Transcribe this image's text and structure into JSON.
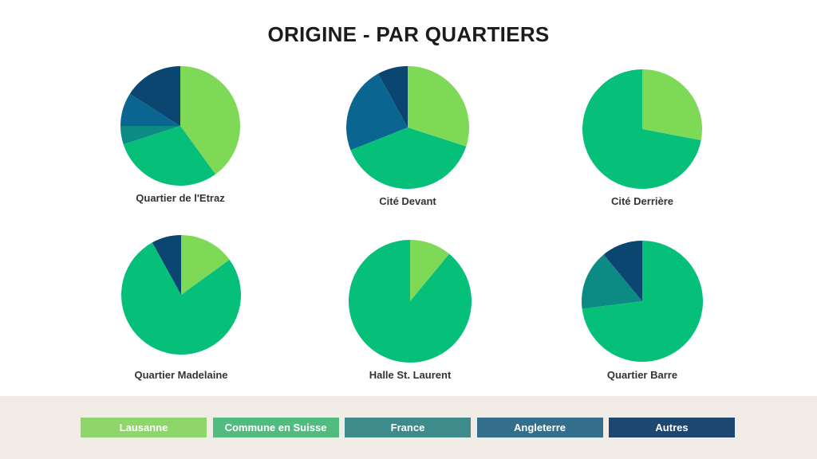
{
  "chart_data": {
    "type": "pie",
    "title": "ORIGINE - PAR QUARTIERS",
    "legend": {
      "placement": "bottom",
      "entries": [
        "Lausanne",
        "Commune en Suisse",
        "France",
        "Angleterre",
        "Autres"
      ]
    },
    "colors": {
      "slices": [
        "#7ed957",
        "#06c07a",
        "#0c8a84",
        "#0a6690",
        "#0a4670"
      ],
      "legend": [
        "#8ed56a",
        "#52bb80",
        "#3d8b8a",
        "#336e8a",
        "#1d4670"
      ]
    },
    "charts": [
      {
        "name": "Quartier de l'Etraz",
        "values": [
          40,
          30,
          5,
          9,
          16
        ]
      },
      {
        "name": "Cité Devant",
        "values": [
          30,
          39,
          0,
          23,
          8
        ]
      },
      {
        "name": "Cité Derrière",
        "values": [
          28,
          72,
          0,
          0,
          0
        ]
      },
      {
        "name": "Quartier Madelaine",
        "values": [
          15,
          77,
          0,
          0,
          8
        ]
      },
      {
        "name": "Halle St. Laurent",
        "values": [
          11,
          89,
          0,
          0,
          0
        ]
      },
      {
        "name": "Quartier Barre",
        "values": [
          0,
          73,
          16,
          0,
          11
        ]
      }
    ]
  }
}
